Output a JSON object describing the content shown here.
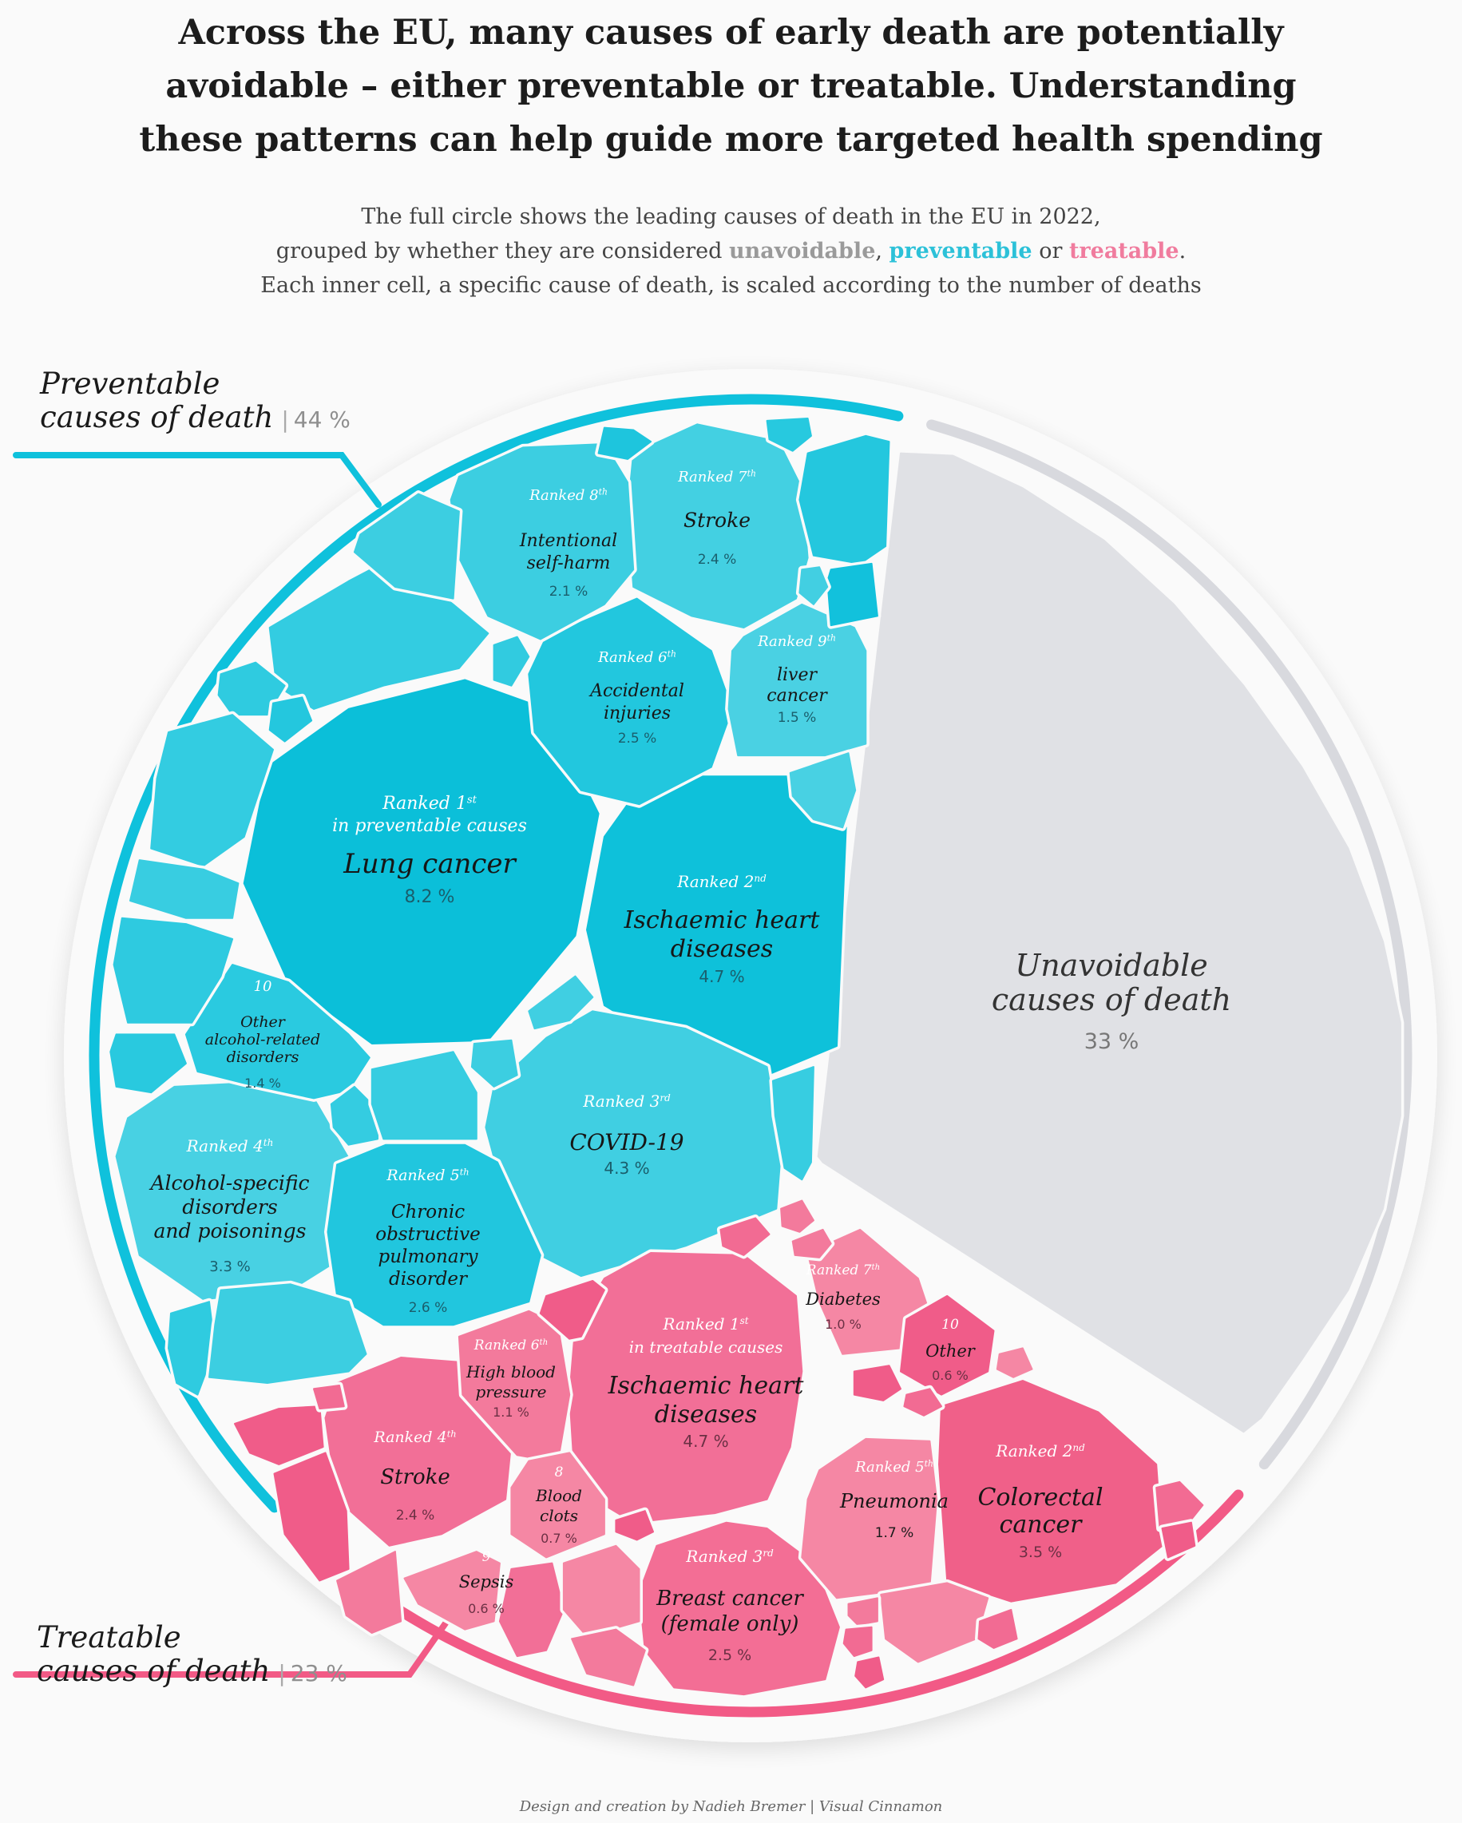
{
  "header": {
    "title_lines": [
      "Across the EU, many causes of early death are potentially",
      "avoidable – either preventable or treatable. Understanding",
      "these patterns can help guide more targeted health spending"
    ],
    "subtitle": {
      "line1": "The full circle shows the leading causes of death in the EU in 2022,",
      "line2_pre": "grouped by whether they are considered ",
      "unavoidable": "unavoidable",
      "comma": ", ",
      "preventable": "preventable",
      "or": " or ",
      "treatable": "treatable",
      "period": ".",
      "line3": "Each inner cell, a specific cause of death, is scaled according to the number of deaths"
    }
  },
  "colors": {
    "preventable": "#0fc1dc",
    "treatable": "#f25a86",
    "unavoidable": "#e0e1e5",
    "unavoidable_arc": "#d8d9de",
    "background": "#fafafa"
  },
  "groups": {
    "preventable": {
      "label_line1": "Preventable",
      "label_line2": "causes of death",
      "separator": "|",
      "percent": "44 %"
    },
    "treatable": {
      "label_line1": "Treatable",
      "label_line2": "causes of death",
      "separator": "|",
      "percent": "23 %"
    },
    "unavoidable": {
      "label_line1": "Unavoidable",
      "label_line2": "causes of death",
      "percent": "33 %"
    }
  },
  "chart_data": {
    "type": "voronoi-treemap",
    "title": "Leading causes of death in the EU in 2022",
    "groups": [
      {
        "name": "Preventable causes of death",
        "share_percent": 44
      },
      {
        "name": "Treatable causes of death",
        "share_percent": 23
      },
      {
        "name": "Unavoidable causes of death",
        "share_percent": 33
      }
    ],
    "preventable": [
      {
        "rank": "Ranked 1",
        "sup": "st",
        "rank_note": "in preventable causes",
        "name": "Lung cancer",
        "value": 8.2,
        "value_label": "8.2 %"
      },
      {
        "rank": "Ranked 2",
        "sup": "nd",
        "name": "Ischaemic heart diseases",
        "value": 4.7,
        "value_label": "4.7 %"
      },
      {
        "rank": "Ranked 3",
        "sup": "rd",
        "name": "COVID-19",
        "value": 4.3,
        "value_label": "4.3 %"
      },
      {
        "rank": "Ranked 4",
        "sup": "th",
        "name": "Alcohol-specific disorders and poisonings",
        "value": 3.3,
        "value_label": "3.3 %"
      },
      {
        "rank": "Ranked 5",
        "sup": "th",
        "name": "Chronic obstructive pulmonary disorder",
        "value": 2.6,
        "value_label": "2.6 %"
      },
      {
        "rank": "Ranked 6",
        "sup": "th",
        "name": "Accidental injuries",
        "value": 2.5,
        "value_label": "2.5 %"
      },
      {
        "rank": "Ranked 7",
        "sup": "th",
        "name": "Stroke",
        "value": 2.4,
        "value_label": "2.4 %"
      },
      {
        "rank": "Ranked 8",
        "sup": "th",
        "name": "Intentional self-harm",
        "value": 2.1,
        "value_label": "2.1 %"
      },
      {
        "rank": "Ranked 9",
        "sup": "th",
        "name": "liver cancer",
        "value": 1.5,
        "value_label": "1.5 %"
      },
      {
        "rank": "10",
        "sup": "",
        "name": "Other alcohol-related disorders",
        "value": 1.4,
        "value_label": "1.4 %"
      }
    ],
    "treatable": [
      {
        "rank": "Ranked 1",
        "sup": "st",
        "rank_note": "in treatable causes",
        "name": "Ischaemic heart diseases",
        "value": 4.7,
        "value_label": "4.7 %"
      },
      {
        "rank": "Ranked 2",
        "sup": "nd",
        "name": "Colorectal cancer",
        "value": 3.5,
        "value_label": "3.5 %"
      },
      {
        "rank": "Ranked 3",
        "sup": "rd",
        "name": "Breast cancer (female only)",
        "value": 2.5,
        "value_label": "2.5 %"
      },
      {
        "rank": "Ranked 4",
        "sup": "th",
        "name": "Stroke",
        "value": 2.4,
        "value_label": "2.4 %"
      },
      {
        "rank": "Ranked 5",
        "sup": "th",
        "name": "Pneumonia",
        "value": 1.7,
        "value_label": "1.7 %"
      },
      {
        "rank": "Ranked 6",
        "sup": "th",
        "name": "High blood pressure",
        "value": 1.1,
        "value_label": "1.1 %"
      },
      {
        "rank": "Ranked 7",
        "sup": "th",
        "name": "Diabetes",
        "value": 1.0,
        "value_label": "1.0 %"
      },
      {
        "rank": "8",
        "sup": "",
        "name": "Blood clots",
        "value": 0.7,
        "value_label": "0.7 %"
      },
      {
        "rank": "9",
        "sup": "",
        "name": "Sepsis",
        "value": 0.6,
        "value_label": "0.6 %"
      },
      {
        "rank": "10",
        "sup": "",
        "name": "Other",
        "value": 0.6,
        "value_label": "0.6 %"
      }
    ]
  },
  "cell_labels": {
    "p1": {
      "rank": "Ranked 1",
      "sup": "st",
      "note": "in preventable causes",
      "lines": [
        "Lung cancer"
      ],
      "pct": "8.2 %"
    },
    "p2": {
      "rank": "Ranked 2",
      "sup": "nd",
      "lines": [
        "Ischaemic heart",
        "diseases"
      ],
      "pct": "4.7 %"
    },
    "p3": {
      "rank": "Ranked 3",
      "sup": "rd",
      "lines": [
        "COVID-19"
      ],
      "pct": "4.3 %"
    },
    "p4": {
      "rank": "Ranked 4",
      "sup": "th",
      "lines": [
        "Alcohol-specific",
        "disorders",
        "and poisonings"
      ],
      "pct": "3.3 %"
    },
    "p5": {
      "rank": "Ranked 5",
      "sup": "th",
      "lines": [
        "Chronic",
        "obstructive",
        "pulmonary",
        "disorder"
      ],
      "pct": "2.6 %"
    },
    "p6": {
      "rank": "Ranked 6",
      "sup": "th",
      "lines": [
        "Accidental",
        "injuries"
      ],
      "pct": "2.5 %"
    },
    "p7": {
      "rank": "Ranked 7",
      "sup": "th",
      "lines": [
        "Stroke"
      ],
      "pct": "2.4 %"
    },
    "p8": {
      "rank": "Ranked 8",
      "sup": "th",
      "lines": [
        "Intentional",
        "self-harm"
      ],
      "pct": "2.1 %"
    },
    "p9": {
      "rank": "Ranked 9",
      "sup": "th",
      "lines": [
        "liver",
        "cancer"
      ],
      "pct": "1.5 %"
    },
    "p10": {
      "rank": "10",
      "sup": "",
      "lines": [
        "Other",
        "alcohol-related",
        "disorders"
      ],
      "pct": "1.4 %"
    },
    "t1": {
      "rank": "Ranked 1",
      "sup": "st",
      "note": "in treatable causes",
      "lines": [
        "Ischaemic heart",
        "diseases"
      ],
      "pct": "4.7 %"
    },
    "t2": {
      "rank": "Ranked 2",
      "sup": "nd",
      "lines": [
        "Colorectal",
        "cancer"
      ],
      "pct": "3.5 %"
    },
    "t3": {
      "rank": "Ranked 3",
      "sup": "rd",
      "lines": [
        "Breast cancer",
        "(female only)"
      ],
      "pct": "2.5 %"
    },
    "t4": {
      "rank": "Ranked 4",
      "sup": "th",
      "lines": [
        "Stroke"
      ],
      "pct": "2.4 %"
    },
    "t5": {
      "rank": "Ranked 5",
      "sup": "th",
      "lines": [
        "Pneumonia"
      ],
      "pct": "1.7 %"
    },
    "t6": {
      "rank": "Ranked 6",
      "sup": "th",
      "lines": [
        "High blood",
        "pressure"
      ],
      "pct": "1.1 %"
    },
    "t7": {
      "rank": "Ranked 7",
      "sup": "th",
      "lines": [
        "Diabetes"
      ],
      "pct": "1.0 %"
    },
    "t8": {
      "rank": "8",
      "sup": "",
      "lines": [
        "Blood",
        "clots"
      ],
      "pct": "0.7 %"
    },
    "t9": {
      "rank": "9",
      "sup": "",
      "lines": [
        "Sepsis"
      ],
      "pct": "0.6 %"
    },
    "t10": {
      "rank": "10",
      "sup": "",
      "lines": [
        "Other"
      ],
      "pct": "0.6 %"
    }
  },
  "footer": {
    "credit": "Design and creation by Nadieh Bremer | Visual Cinnamon"
  }
}
